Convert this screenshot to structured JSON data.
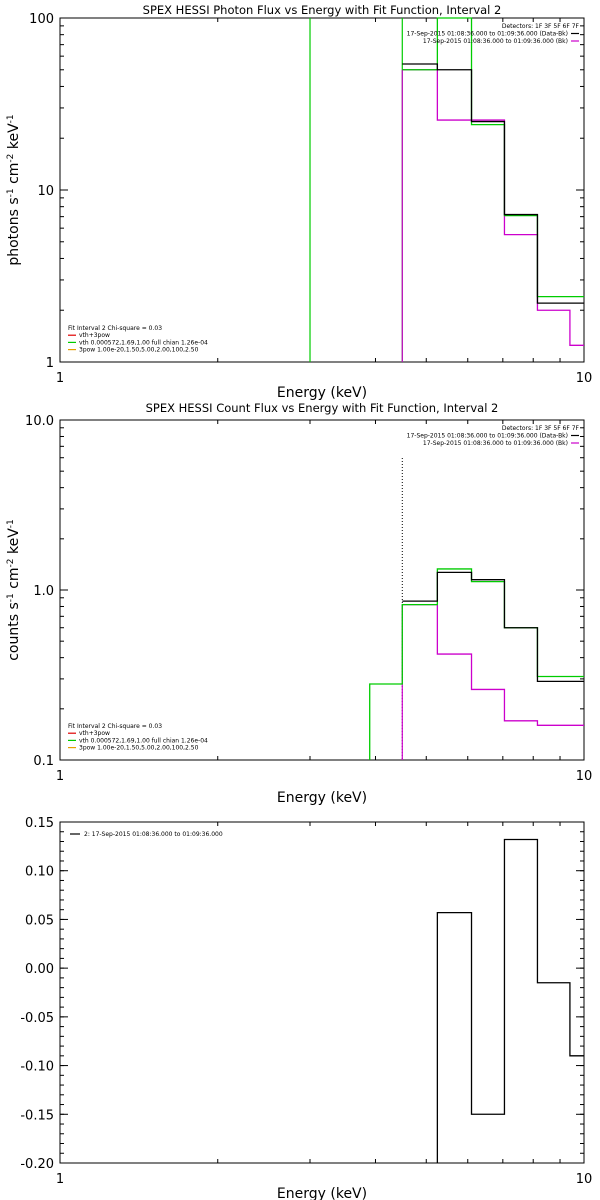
{
  "colors": {
    "black": "#000000",
    "green": "#00cc00",
    "magenta": "#cc00cc",
    "orange": "#e6a000",
    "red": "#e00000"
  },
  "chart_data": [
    {
      "type": "line",
      "title": "SPEX HESSI Photon Flux vs Energy with Fit Function, Interval 2",
      "xlabel": "Energy (keV)",
      "ylabel_parts": [
        "photons s",
        "-1",
        " cm",
        "-2",
        " keV",
        "-1"
      ],
      "xscale": "log",
      "yscale": "log",
      "xlim": [
        1,
        10
      ],
      "ylim": [
        1,
        100
      ],
      "xticks": [
        1,
        10
      ],
      "xticklabels": [
        "1",
        "10"
      ],
      "yticks": [
        1,
        10,
        100
      ],
      "yticklabels": [
        "1",
        "10",
        "100"
      ],
      "legend_right": [
        "Detectors: 1F 3F 5F 6F 7F",
        "17-Sep-2015 01:08:36.000 to 01:09:36.000 (Data-Bk)",
        "17-Sep-2015 01:08:36.000 to 01:09:36.000 (Bk)"
      ],
      "legend_left": [
        "Fit Interval  2   Chi-square = 0.03",
        "vth+3pow",
        "vth 0.000572,1.69,1.00  full chian 1.26e-04",
        "3pow 1.00e-20,1.50,5.00,2.00,100,2.50"
      ],
      "vlines": [
        {
          "x": 3.0,
          "series": "fit"
        },
        {
          "x": 4.5,
          "series": "background"
        }
      ],
      "bin_edges": [
        4.5,
        5.25,
        6.1,
        7.05,
        8.15,
        9.4,
        10.0
      ],
      "series": [
        {
          "name": "17-Sep-2015 01:08:36.000 to 01:09:36.000 (Data-Bk)",
          "color": "black",
          "values": [
            54,
            50,
            25,
            7.2,
            2.2,
            2.2
          ]
        },
        {
          "name": "vth+3pow",
          "color": "green",
          "values": [
            50,
            100,
            24,
            7.1,
            2.4,
            2.4
          ]
        },
        {
          "name": "17-Sep-2015 01:08:36.000 to 01:09:36.000 (Bk)",
          "color": "magenta",
          "values": [
            50,
            25.5,
            25.5,
            5.5,
            2.0,
            1.25
          ]
        }
      ]
    },
    {
      "type": "line",
      "title": "SPEX HESSI Count Flux vs Energy with Fit Function, Interval 2",
      "xlabel": "Energy (keV)",
      "ylabel_parts": [
        "counts s",
        "-1",
        " cm",
        "-2",
        " keV",
        "-1"
      ],
      "xscale": "log",
      "yscale": "log",
      "xlim": [
        1,
        10
      ],
      "ylim": [
        0.1,
        10
      ],
      "xticks": [
        1,
        10
      ],
      "xticklabels": [
        "1",
        "10"
      ],
      "yticks": [
        0.1,
        1,
        10
      ],
      "yticklabels": [
        "0.1",
        "1.0",
        "10.0"
      ],
      "legend_right": [
        "Detectors: 1F 3F 5F 6F 7F",
        "17-Sep-2015 01:08:36.000 to 01:09:36.000 (Data-Bk)",
        "17-Sep-2015 01:08:36.000 to 01:09:36.000 (Bk)"
      ],
      "legend_left": [
        "Fit Interval  2   Chi-square = 0.03",
        "vth+3pow",
        "vth 0.000572,1.69,1.00  full chian 1.26e-04",
        "3pow 1.00e-20,1.50,5.00,2.00,100,2.50"
      ],
      "vlines": [
        {
          "x": 4.5,
          "series": "fit-range"
        }
      ],
      "bin_edges": [
        3.9,
        4.5,
        5.25,
        6.1,
        7.05,
        8.15,
        9.4,
        10.0
      ],
      "series": [
        {
          "name": "17-Sep-2015 01:08:36.000 to 01:09:36.000 (Data-Bk)",
          "color": "black",
          "values": [
            null,
            0.86,
            1.27,
            1.15,
            0.6,
            0.29,
            0.29
          ]
        },
        {
          "name": "vth+3pow",
          "color": "green",
          "values": [
            0.28,
            0.82,
            1.33,
            1.12,
            0.6,
            0.31,
            0.31
          ]
        },
        {
          "name": "17-Sep-2015 01:08:36.000 to 01:09:36.000 (Bk)",
          "color": "magenta",
          "values": [
            null,
            0.82,
            0.42,
            0.26,
            0.17,
            0.16,
            0.16
          ]
        }
      ]
    },
    {
      "type": "line",
      "title": "",
      "xlabel": "Energy (keV)",
      "ylabel": "",
      "xscale": "log",
      "yscale": "linear",
      "xlim": [
        1,
        10
      ],
      "ylim": [
        -0.2,
        0.15
      ],
      "xticks": [
        1,
        10
      ],
      "xticklabels": [
        "1",
        "10"
      ],
      "yticks": [
        0.15,
        0.1,
        0.05,
        0.0,
        -0.05,
        -0.1,
        -0.15,
        -0.2
      ],
      "yticklabels": [
        "0.15",
        "0.10",
        "0.05",
        "0.00",
        "-0.05",
        "-0.10",
        "-0.15",
        "-0.20"
      ],
      "legend_left": [
        "2: 17-Sep-2015 01:08:36.000 to 01:09:36.000"
      ],
      "bin_edges": [
        5.25,
        6.1,
        7.05,
        8.15,
        9.4,
        10.0
      ],
      "series": [
        {
          "name": "2: 17-Sep-2015 01:08:36.000 to 01:09:36.000",
          "color": "black",
          "values": [
            0.057,
            -0.15,
            0.132,
            -0.015,
            -0.09
          ]
        }
      ]
    }
  ]
}
